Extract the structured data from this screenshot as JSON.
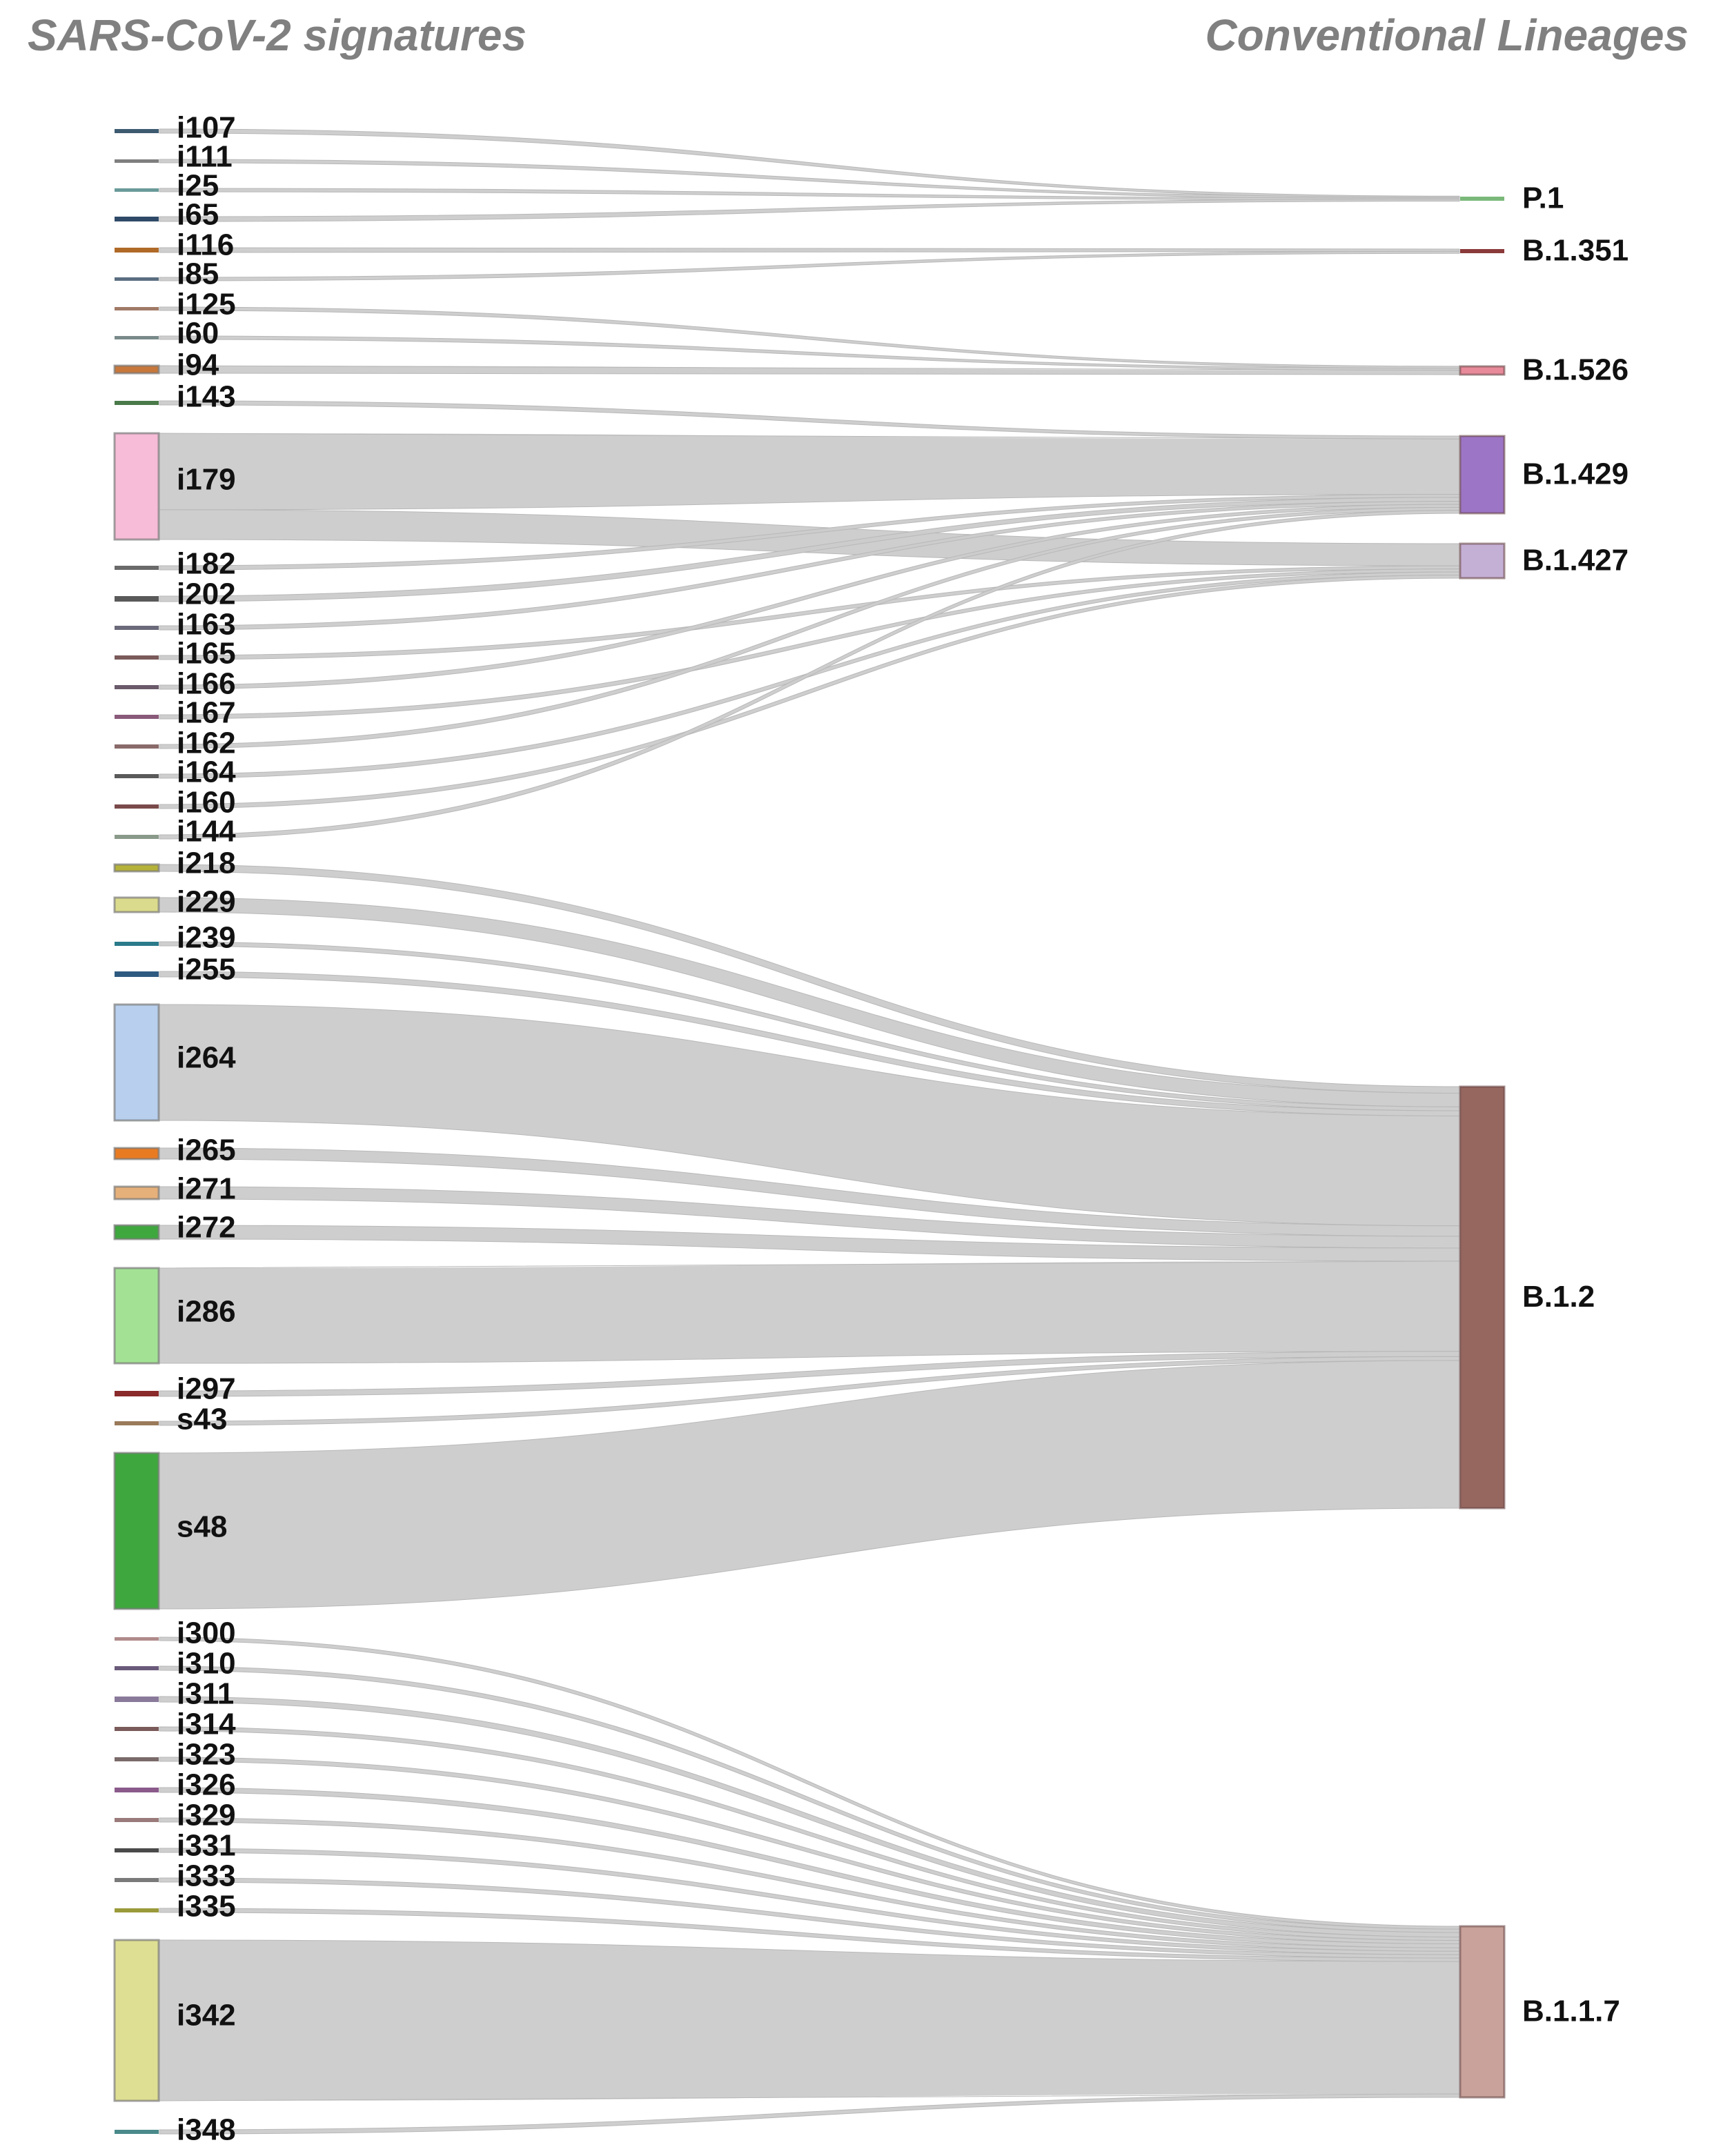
{
  "headers": {
    "left": "SARS-CoV-2 signatures",
    "right": "Conventional Lineages"
  },
  "sources": [
    {
      "label": "i107",
      "color": "#3d5a70",
      "target": "P.1"
    },
    {
      "label": "i111",
      "color": "#7f7f7f",
      "target": "P.1"
    },
    {
      "label": "i25",
      "color": "#6a9a9a",
      "target": "P.1"
    },
    {
      "label": "i65",
      "color": "#2f4a68",
      "target": "P.1"
    },
    {
      "label": "i116",
      "color": "#b06a28",
      "target": "B.1.351"
    },
    {
      "label": "i85",
      "color": "#5a6e80",
      "target": "B.1.351"
    },
    {
      "label": "i125",
      "color": "#a07a66",
      "target": "B.1.526"
    },
    {
      "label": "i60",
      "color": "#7a8a8a",
      "target": "B.1.526"
    },
    {
      "label": "i94",
      "color": "#c8783a",
      "target": "B.1.526"
    },
    {
      "label": "i143",
      "color": "#4a7a4a",
      "target": "B.1.429"
    },
    {
      "label": "i179",
      "color": "#f7bcd8",
      "targets": [
        "B.1.429",
        "B.1.427"
      ]
    },
    {
      "label": "i182",
      "color": "#6a6a6a",
      "target": "B.1.429"
    },
    {
      "label": "i202",
      "color": "#5a5a5a",
      "target": "B.1.429"
    },
    {
      "label": "i163",
      "color": "#6a6a7a",
      "target": "B.1.429"
    },
    {
      "label": "i165",
      "color": "#7a5a5a",
      "target": "B.1.427"
    },
    {
      "label": "i166",
      "color": "#6a5a6a",
      "target": "B.1.429"
    },
    {
      "label": "i167",
      "color": "#8a5a7a",
      "target": "B.1.427"
    },
    {
      "label": "i162",
      "color": "#8a6a6a",
      "target": "B.1.429"
    },
    {
      "label": "i164",
      "color": "#5a5a5a",
      "target": "B.1.427"
    },
    {
      "label": "i160",
      "color": "#7a4a4a",
      "target": "B.1.427"
    },
    {
      "label": "i144",
      "color": "#8a9a8a",
      "target": "B.1.429"
    },
    {
      "label": "i218",
      "color": "#b5b23a",
      "target": "B.1.2"
    },
    {
      "label": "i229",
      "color": "#dbdb8d",
      "target": "B.1.2"
    },
    {
      "label": "i239",
      "color": "#2a7a8a",
      "target": "B.1.2"
    },
    {
      "label": "i255",
      "color": "#2f5a80",
      "target": "B.1.2"
    },
    {
      "label": "i264",
      "color": "#b8cfee",
      "target": "B.1.2"
    },
    {
      "label": "i265",
      "color": "#e87b22",
      "target": "B.1.2"
    },
    {
      "label": "i271",
      "color": "#e6b07a",
      "target": "B.1.2"
    },
    {
      "label": "i272",
      "color": "#3ea83e",
      "target": "B.1.2"
    },
    {
      "label": "i286",
      "color": "#a3e295",
      "target": "B.1.2"
    },
    {
      "label": "i297",
      "color": "#8a2a2a",
      "target": "B.1.2"
    },
    {
      "label": "s43",
      "color": "#9a7a5a",
      "target": "B.1.2"
    },
    {
      "label": "s48",
      "color": "#3ea83e",
      "target": "B.1.2"
    },
    {
      "label": "i300",
      "color": "#b08a8a",
      "target": "B.1.1.7"
    },
    {
      "label": "i310",
      "color": "#6a5a7a",
      "target": "B.1.1.7"
    },
    {
      "label": "i311",
      "color": "#8a7a9a",
      "target": "B.1.1.7"
    },
    {
      "label": "i314",
      "color": "#7a5a5a",
      "target": "B.1.1.7"
    },
    {
      "label": "i323",
      "color": "#7a6a6a",
      "target": "B.1.1.7"
    },
    {
      "label": "i326",
      "color": "#8a5a8a",
      "target": "B.1.1.7"
    },
    {
      "label": "i329",
      "color": "#9a7a7a",
      "target": "B.1.1.7"
    },
    {
      "label": "i331",
      "color": "#4a4a4a",
      "target": "B.1.1.7"
    },
    {
      "label": "i333",
      "color": "#7a7a7a",
      "target": "B.1.1.7"
    },
    {
      "label": "i335",
      "color": "#9a9a3a",
      "target": "B.1.1.7"
    },
    {
      "label": "i342",
      "color": "#dfdf93",
      "target": "B.1.1.7"
    },
    {
      "label": "i348",
      "color": "#4a8a8a",
      "target": "B.1.1.7"
    }
  ],
  "targets": [
    {
      "label": "P.1",
      "color": "#7ab87a"
    },
    {
      "label": "B.1.351",
      "color": "#8a3a3a"
    },
    {
      "label": "B.1.526",
      "color": "#e88a9a"
    },
    {
      "label": "B.1.429",
      "color": "#9c75c6"
    },
    {
      "label": "B.1.427",
      "color": "#c5b0d5"
    },
    {
      "label": "B.1.2",
      "color": "#96675f"
    },
    {
      "label": "B.1.1.7",
      "color": "#c9a39b"
    }
  ],
  "link_color": "#cbcbcb"
}
